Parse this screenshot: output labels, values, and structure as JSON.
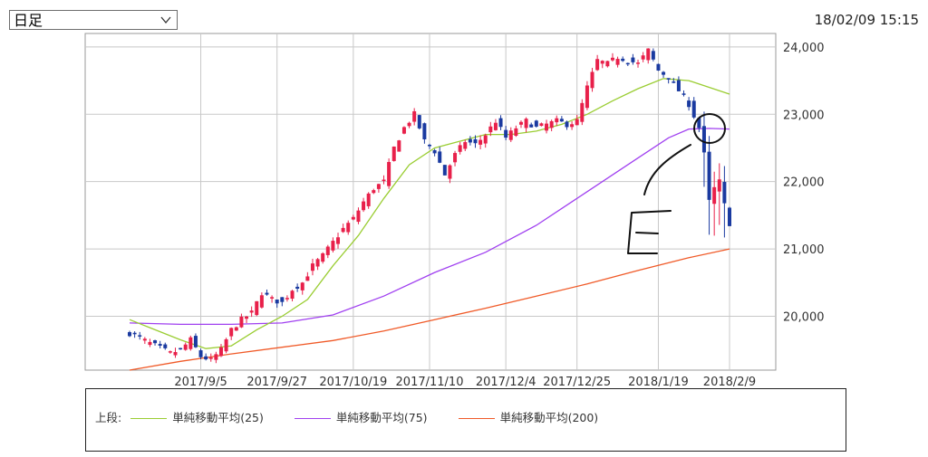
{
  "period_select": {
    "label": "日足"
  },
  "timestamp": "18/02/09 15:15",
  "legend": {
    "header": "上段:",
    "items": [
      {
        "label": "単純移動平均(25)",
        "color": "#9acd32"
      },
      {
        "label": "単純移動平均(75)",
        "color": "#a040f0"
      },
      {
        "label": "単純移動平均(200)",
        "color": "#f05a28"
      }
    ]
  },
  "chart_data": {
    "type": "candlestick",
    "y_ticks": [
      "20,000",
      "21,000",
      "22,000",
      "23,000",
      "24,000"
    ],
    "y_tick_values": [
      20000,
      21000,
      22000,
      23000,
      24000
    ],
    "ylim": [
      19200,
      24200
    ],
    "x_ticks": [
      "2017/9/5",
      "2017/9/27",
      "2017/10/19",
      "2017/11/10",
      "2017/12/4",
      "2017/12/25",
      "2018/1/19",
      "2018/2/9"
    ],
    "x_tick_index": [
      14,
      29,
      44,
      59,
      74,
      88,
      104,
      118
    ],
    "n_sessions": 119,
    "up_color": "#e8204a",
    "down_color": "#1a3aa0",
    "close_path": [
      [
        0,
        19750
      ],
      [
        4,
        19600
      ],
      [
        8,
        19450
      ],
      [
        10,
        19500
      ],
      [
        12,
        19650
      ],
      [
        14,
        19400
      ],
      [
        16,
        19350
      ],
      [
        18,
        19500
      ],
      [
        20,
        19800
      ],
      [
        22,
        19950
      ],
      [
        24,
        20050
      ],
      [
        26,
        20350
      ],
      [
        28,
        20250
      ],
      [
        30,
        20200
      ],
      [
        32,
        20400
      ],
      [
        34,
        20500
      ],
      [
        36,
        20750
      ],
      [
        38,
        20900
      ],
      [
        40,
        21100
      ],
      [
        42,
        21300
      ],
      [
        44,
        21450
      ],
      [
        46,
        21700
      ],
      [
        48,
        21900
      ],
      [
        50,
        22000
      ],
      [
        52,
        22500
      ],
      [
        54,
        22800
      ],
      [
        56,
        23000
      ],
      [
        58,
        22600
      ],
      [
        60,
        22450
      ],
      [
        62,
        22100
      ],
      [
        64,
        22400
      ],
      [
        66,
        22600
      ],
      [
        68,
        22550
      ],
      [
        70,
        22700
      ],
      [
        72,
        22900
      ],
      [
        74,
        22650
      ],
      [
        76,
        22800
      ],
      [
        78,
        22900
      ],
      [
        80,
        22800
      ],
      [
        82,
        22850
      ],
      [
        84,
        22900
      ],
      [
        86,
        22850
      ],
      [
        88,
        22900
      ],
      [
        90,
        23400
      ],
      [
        92,
        23800
      ],
      [
        94,
        23750
      ],
      [
        96,
        23850
      ],
      [
        98,
        23800
      ],
      [
        100,
        23750
      ],
      [
        102,
        23950
      ],
      [
        104,
        23650
      ],
      [
        106,
        23550
      ],
      [
        108,
        23350
      ],
      [
        110,
        23150
      ],
      [
        112,
        22800
      ],
      [
        113,
        22400
      ],
      [
        114,
        21700
      ],
      [
        115,
        21900
      ],
      [
        116,
        22000
      ],
      [
        117,
        21650
      ],
      [
        118,
        21380
      ]
    ],
    "ma25": [
      [
        0,
        19950
      ],
      [
        5,
        19800
      ],
      [
        10,
        19650
      ],
      [
        15,
        19520
      ],
      [
        20,
        19560
      ],
      [
        25,
        19800
      ],
      [
        30,
        20000
      ],
      [
        35,
        20250
      ],
      [
        40,
        20750
      ],
      [
        45,
        21200
      ],
      [
        50,
        21750
      ],
      [
        55,
        22250
      ],
      [
        60,
        22500
      ],
      [
        65,
        22600
      ],
      [
        70,
        22700
      ],
      [
        75,
        22700
      ],
      [
        80,
        22750
      ],
      [
        85,
        22850
      ],
      [
        90,
        23000
      ],
      [
        95,
        23200
      ],
      [
        100,
        23380
      ],
      [
        105,
        23530
      ],
      [
        110,
        23500
      ],
      [
        118,
        23300
      ]
    ],
    "ma75": [
      [
        0,
        19900
      ],
      [
        10,
        19880
      ],
      [
        20,
        19880
      ],
      [
        30,
        19900
      ],
      [
        40,
        20020
      ],
      [
        50,
        20300
      ],
      [
        60,
        20650
      ],
      [
        70,
        20950
      ],
      [
        80,
        21350
      ],
      [
        90,
        21850
      ],
      [
        100,
        22350
      ],
      [
        106,
        22650
      ],
      [
        110,
        22780
      ],
      [
        114,
        22790
      ],
      [
        118,
        22780
      ]
    ],
    "ma200": [
      [
        0,
        19200
      ],
      [
        10,
        19330
      ],
      [
        20,
        19440
      ],
      [
        30,
        19540
      ],
      [
        40,
        19640
      ],
      [
        50,
        19780
      ],
      [
        60,
        19950
      ],
      [
        70,
        20120
      ],
      [
        80,
        20300
      ],
      [
        90,
        20480
      ],
      [
        100,
        20680
      ],
      [
        110,
        20870
      ],
      [
        118,
        21000
      ]
    ]
  }
}
